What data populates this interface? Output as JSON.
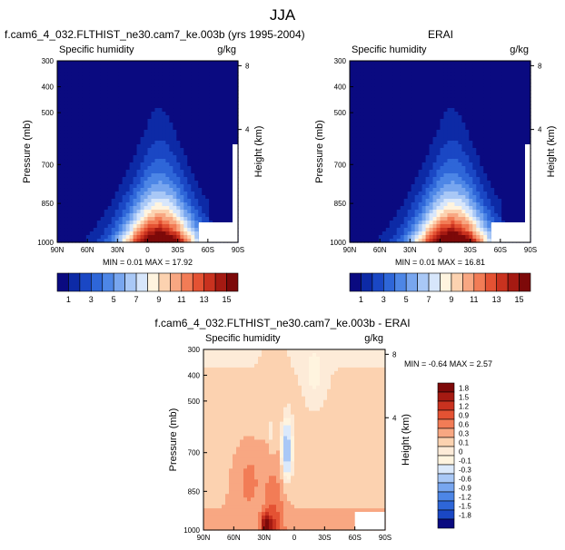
{
  "figure": {
    "title": "JJA"
  },
  "chart_data": [
    {
      "type": "contour",
      "id": "model",
      "header": "f.cam6_4_032.FLTHIST_ne30.cam7_ke.003b (yrs 1995-2004)",
      "variable": "Specific humidity",
      "units": "g/kg",
      "ylabel": "Pressure (mb)",
      "y2label": "Height (km)",
      "x_ticks": [
        "90N",
        "60N",
        "30N",
        "0",
        "30S",
        "60S",
        "90S"
      ],
      "x_range": [
        90,
        -90
      ],
      "y_ticks": [
        "300",
        "400",
        "500",
        "700",
        "850",
        "1000"
      ],
      "y_range_mb": [
        1000,
        300
      ],
      "height_ticks": [
        "8",
        "4"
      ],
      "stats": "MIN =  0.01  MAX = 17.92",
      "min": 0.01,
      "max": 17.92
    },
    {
      "type": "contour",
      "id": "obs",
      "header": "ERAI",
      "variable": "Specific humidity",
      "units": "g/kg",
      "ylabel": "Pressure (mb)",
      "y2label": "Height (km)",
      "x_ticks": [
        "90N",
        "60N",
        "30N",
        "0",
        "30S",
        "60S",
        "90S"
      ],
      "x_range": [
        90,
        -90
      ],
      "y_ticks": [
        "300",
        "400",
        "500",
        "700",
        "850",
        "1000"
      ],
      "y_range_mb": [
        1000,
        300
      ],
      "height_ticks": [
        "8",
        "4"
      ],
      "stats": "MIN =  0.01  MAX = 16.81",
      "min": 0.01,
      "max": 16.81
    },
    {
      "type": "contour",
      "id": "diff",
      "header": "f.cam6_4_032.FLTHIST_ne30.cam7_ke.003b - ERAI",
      "variable": "Specific humidity",
      "units": "g/kg",
      "ylabel": "Pressure (mb)",
      "y2label": "Height (km)",
      "x_ticks": [
        "90N",
        "60N",
        "30N",
        "0",
        "30S",
        "60S",
        "90S"
      ],
      "x_range": [
        90,
        -90
      ],
      "y_ticks": [
        "300",
        "400",
        "500",
        "700",
        "850",
        "1000"
      ],
      "y_range_mb": [
        1000,
        300
      ],
      "height_ticks": [
        "8",
        "4"
      ],
      "stats": "MIN = -0.64  MAX =  2.57",
      "min": -0.64,
      "max": 2.57
    }
  ],
  "colorbars": {
    "abs": {
      "labels": [
        "1",
        "3",
        "5",
        "7",
        "9",
        "11",
        "13",
        "15"
      ],
      "colors": [
        "#0a0a80",
        "#0d2aa6",
        "#1a47c4",
        "#2e66d8",
        "#4d86e6",
        "#78a6ef",
        "#a9c8f6",
        "#d7e6fb",
        "#fff4df",
        "#fcd2b0",
        "#f8a782",
        "#f27c56",
        "#e45233",
        "#c9321f",
        "#a51a12",
        "#7d0909"
      ]
    },
    "diff": {
      "labels": [
        "1.8",
        "1.5",
        "1.2",
        "0.9",
        "0.6",
        "0.3",
        "0.1",
        "0",
        "-0.1",
        "-0.3",
        "-0.6",
        "-0.9",
        "-1.2",
        "-1.5",
        "-1.8"
      ],
      "colors": [
        "#7d0909",
        "#a51a12",
        "#c9321f",
        "#e45233",
        "#f27c56",
        "#f8a782",
        "#fcd2b0",
        "#fdebd8",
        "#fff4df",
        "#dbe9fb",
        "#a9c8f6",
        "#78a6ef",
        "#4d86e6",
        "#2e66d8",
        "#1a47c4",
        "#0a0a80"
      ]
    }
  }
}
